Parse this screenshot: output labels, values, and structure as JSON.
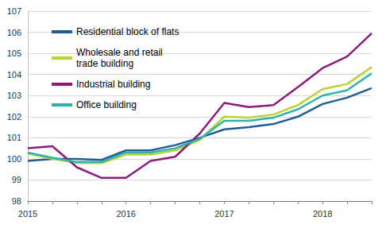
{
  "chart_data": {
    "type": "line",
    "categories": [
      "2015",
      null,
      null,
      null,
      "2016",
      null,
      null,
      null,
      "2017",
      null,
      null,
      null,
      "2018",
      null,
      null
    ],
    "series": [
      {
        "name": "Residential block of flats",
        "color": "#1f5c99",
        "values": [
          99.9,
          100.0,
          100.0,
          99.95,
          100.4,
          100.4,
          100.65,
          101.0,
          101.4,
          101.5,
          101.65,
          102.0,
          102.6,
          102.9,
          103.35
        ]
      },
      {
        "name": "Wholesale and retail trade building",
        "color": "#b8d432",
        "values": [
          100.25,
          100.0,
          99.8,
          99.8,
          100.2,
          100.2,
          100.4,
          100.9,
          102.0,
          101.95,
          102.1,
          102.55,
          103.3,
          103.55,
          104.35
        ]
      },
      {
        "name": "Industrial building",
        "color": "#8c1b7f",
        "values": [
          100.5,
          100.6,
          99.6,
          99.1,
          99.1,
          99.9,
          100.1,
          101.2,
          102.65,
          102.45,
          102.55,
          103.4,
          104.3,
          104.85,
          105.95
        ]
      },
      {
        "name": "Office building",
        "color": "#2db3ad",
        "values": [
          100.3,
          100.05,
          99.85,
          99.85,
          100.3,
          100.3,
          100.5,
          100.95,
          101.8,
          101.8,
          101.95,
          102.35,
          103.0,
          103.25,
          104.05
        ]
      }
    ],
    "ylim": [
      98,
      107
    ],
    "yticks": [
      98,
      99,
      100,
      101,
      102,
      103,
      104,
      105,
      106,
      107
    ],
    "grid": true,
    "legend": "upper left"
  }
}
